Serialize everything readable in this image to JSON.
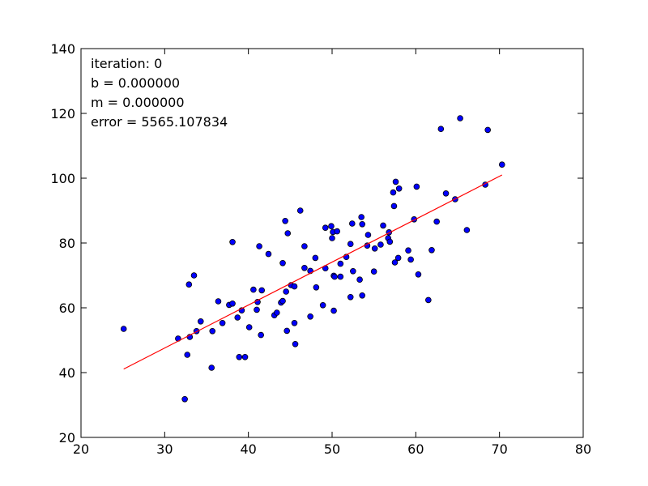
{
  "chart_data": {
    "type": "scatter",
    "title": "",
    "xlabel": "",
    "ylabel": "",
    "xlim": [
      20,
      80
    ],
    "ylim": [
      20,
      140
    ],
    "xticks": [
      20,
      30,
      40,
      50,
      60,
      70,
      80
    ],
    "yticks": [
      20,
      40,
      60,
      80,
      100,
      120,
      140
    ],
    "grid": false,
    "annotations": [
      "iteration: 0",
      "b = 0.000000",
      "m = 0.000000",
      "error = 5565.107834"
    ],
    "points": [
      [
        25.1,
        53.5
      ],
      [
        31.6,
        50.5
      ],
      [
        32.4,
        31.8
      ],
      [
        32.7,
        45.5
      ],
      [
        32.9,
        67.2
      ],
      [
        33.0,
        51.0
      ],
      [
        33.5,
        70.0
      ],
      [
        33.8,
        52.8
      ],
      [
        34.3,
        55.8
      ],
      [
        35.6,
        41.5
      ],
      [
        35.7,
        52.8
      ],
      [
        36.4,
        62.0
      ],
      [
        36.9,
        55.3
      ],
      [
        37.7,
        60.9
      ],
      [
        38.1,
        61.3
      ],
      [
        38.1,
        80.3
      ],
      [
        38.7,
        57.0
      ],
      [
        38.9,
        44.8
      ],
      [
        39.2,
        59.2
      ],
      [
        39.6,
        44.8
      ],
      [
        40.1,
        54.0
      ],
      [
        40.6,
        65.6
      ],
      [
        41.0,
        59.4
      ],
      [
        41.1,
        61.8
      ],
      [
        41.3,
        79.0
      ],
      [
        41.5,
        51.6
      ],
      [
        41.6,
        65.4
      ],
      [
        42.4,
        76.6
      ],
      [
        43.1,
        57.7
      ],
      [
        43.4,
        58.5
      ],
      [
        43.9,
        61.6
      ],
      [
        44.1,
        62.1
      ],
      [
        44.1,
        73.8
      ],
      [
        44.4,
        86.8
      ],
      [
        44.5,
        65.0
      ],
      [
        44.6,
        52.9
      ],
      [
        44.7,
        83.0
      ],
      [
        45.1,
        67.0
      ],
      [
        45.5,
        66.6
      ],
      [
        45.5,
        55.3
      ],
      [
        45.6,
        48.8
      ],
      [
        46.2,
        90.0
      ],
      [
        46.7,
        72.3
      ],
      [
        46.7,
        79.0
      ],
      [
        47.4,
        71.4
      ],
      [
        47.4,
        57.3
      ],
      [
        48.0,
        75.4
      ],
      [
        48.1,
        66.3
      ],
      [
        48.9,
        60.8
      ],
      [
        49.2,
        84.7
      ],
      [
        49.2,
        72.2
      ],
      [
        49.9,
        85.2
      ],
      [
        50.0,
        81.5
      ],
      [
        50.1,
        83.4
      ],
      [
        50.2,
        69.9
      ],
      [
        50.2,
        59.1
      ],
      [
        50.3,
        69.6
      ],
      [
        50.6,
        83.6
      ],
      [
        51.0,
        73.6
      ],
      [
        51.0,
        69.6
      ],
      [
        51.7,
        75.7
      ],
      [
        52.2,
        79.7
      ],
      [
        52.2,
        63.3
      ],
      [
        52.4,
        86.0
      ],
      [
        52.5,
        71.3
      ],
      [
        53.3,
        68.7
      ],
      [
        53.5,
        88.0
      ],
      [
        53.6,
        63.8
      ],
      [
        53.6,
        85.8
      ],
      [
        54.2,
        79.2
      ],
      [
        54.3,
        82.5
      ],
      [
        55.0,
        71.2
      ],
      [
        55.1,
        78.3
      ],
      [
        55.8,
        79.5
      ],
      [
        56.1,
        85.4
      ],
      [
        56.7,
        81.5
      ],
      [
        56.8,
        83.3
      ],
      [
        56.9,
        80.4
      ],
      [
        57.3,
        95.6
      ],
      [
        57.4,
        91.4
      ],
      [
        57.5,
        74.0
      ],
      [
        57.6,
        98.9
      ],
      [
        57.9,
        75.4
      ],
      [
        58.0,
        96.8
      ],
      [
        59.1,
        77.7
      ],
      [
        59.4,
        74.9
      ],
      [
        59.8,
        87.3
      ],
      [
        60.1,
        97.4
      ],
      [
        60.3,
        70.3
      ],
      [
        61.5,
        62.4
      ],
      [
        61.9,
        77.8
      ],
      [
        62.5,
        86.6
      ],
      [
        63.0,
        115.2
      ],
      [
        63.6,
        95.3
      ],
      [
        64.7,
        93.5
      ],
      [
        65.3,
        118.5
      ],
      [
        66.1,
        84.0
      ],
      [
        68.3,
        98.0
      ],
      [
        68.6,
        114.9
      ],
      [
        70.3,
        104.2
      ]
    ],
    "fit_line": {
      "x": [
        25.1,
        70.3
      ],
      "y": [
        41.1,
        101.0
      ]
    },
    "point_color": "#0000ff",
    "point_edge_color": "#000000",
    "line_color": "#ff0000"
  }
}
